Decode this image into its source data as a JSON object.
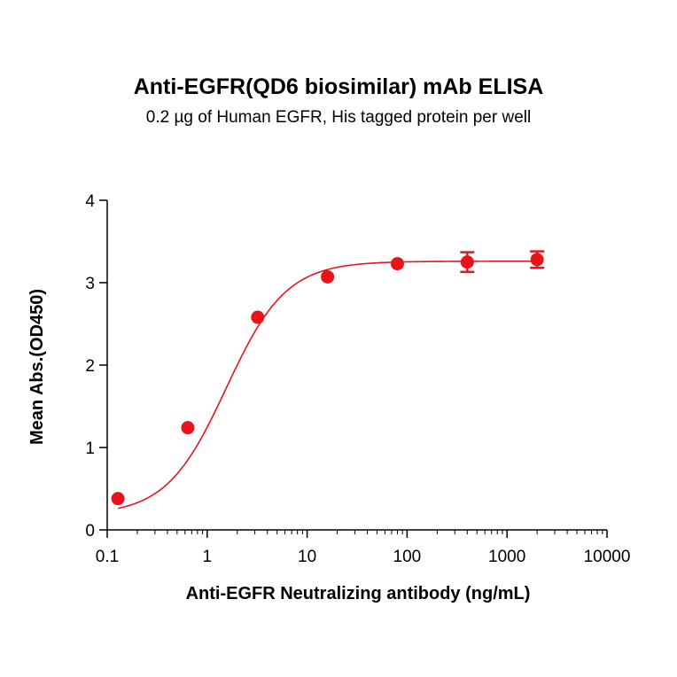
{
  "chart_data": {
    "type": "scatter",
    "title": "Anti-EGFR(QD6 biosimilar) mAb ELISA",
    "subtitle": "0.2 µg of Human EGFR, His tagged protein per well",
    "xlabel": "Anti-EGFR Neutralizing antibody (ng/mL)",
    "ylabel": "Mean Abs.(OD450)",
    "x_scale": "log",
    "xlim": [
      0.1,
      10000
    ],
    "ylim": [
      0,
      4
    ],
    "x_ticks": [
      "0.1",
      "1",
      "10",
      "100",
      "1000",
      "10000"
    ],
    "y_ticks": [
      "0",
      "1",
      "2",
      "3",
      "4"
    ],
    "grid": false,
    "series": [
      {
        "x": [
          0.128,
          0.64,
          3.2,
          16,
          80,
          400,
          2000
        ],
        "y": [
          0.38,
          1.24,
          2.58,
          3.07,
          3.23,
          3.25,
          3.28
        ],
        "error": [
          0.02,
          0.03,
          0.03,
          0.03,
          0.03,
          0.12,
          0.1
        ],
        "color": "#e8141b",
        "fit": "4-parameter logistic"
      }
    ]
  }
}
